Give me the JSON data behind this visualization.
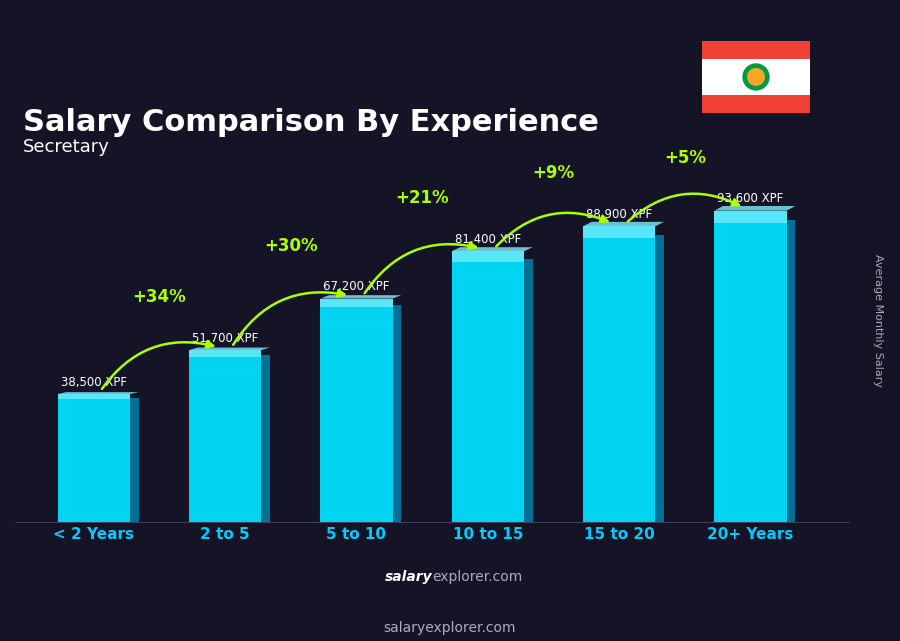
{
  "title": "Salary Comparison By Experience",
  "subtitle": "Secretary",
  "ylabel": "Average Monthly Salary",
  "xlabel_note": "salaryexplorer.com",
  "categories": [
    "< 2 Years",
    "2 to 5",
    "5 to 10",
    "10 to 15",
    "15 to 20",
    "20+ Years"
  ],
  "values": [
    38500,
    51700,
    67200,
    81400,
    88900,
    93600
  ],
  "value_labels": [
    "38,500 XPF",
    "51,700 XPF",
    "67,200 XPF",
    "81,400 XPF",
    "88,900 XPF",
    "93,600 XPF"
  ],
  "pct_labels": [
    "+34%",
    "+30%",
    "+21%",
    "+9%",
    "+5%"
  ],
  "bar_color_top": "#00d4f0",
  "bar_color_bottom": "#0099cc",
  "bar_color_side": "#007aa3",
  "bg_color": "#1a1a2e",
  "title_color": "#ffffff",
  "subtitle_color": "#ffffff",
  "value_label_color": "#ffffff",
  "pct_color": "#aaff00",
  "category_color": "#00ccff",
  "figsize": [
    9.0,
    6.41
  ],
  "bar_width": 0.55,
  "max_value": 110000
}
